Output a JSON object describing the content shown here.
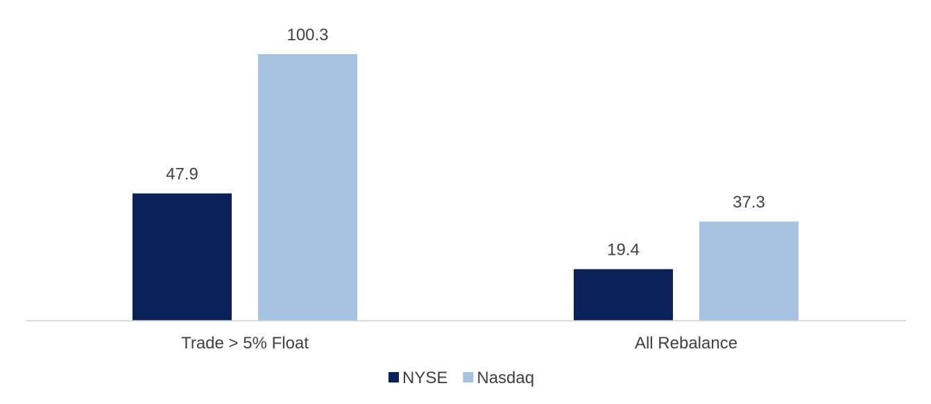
{
  "chart_data": {
    "type": "bar",
    "categories": [
      "Trade > 5% Float",
      "All Rebalance"
    ],
    "series": [
      {
        "name": "NYSE",
        "values": [
          47.9,
          19.4
        ],
        "color": "#0A2259"
      },
      {
        "name": "Nasdaq",
        "values": [
          100.3,
          37.3
        ],
        "color": "#A6C3E2"
      }
    ],
    "title": "",
    "xlabel": "",
    "ylabel": "",
    "ylim": [
      0,
      105
    ],
    "grid": false,
    "legend": "bottom-center",
    "data_labels": true
  }
}
